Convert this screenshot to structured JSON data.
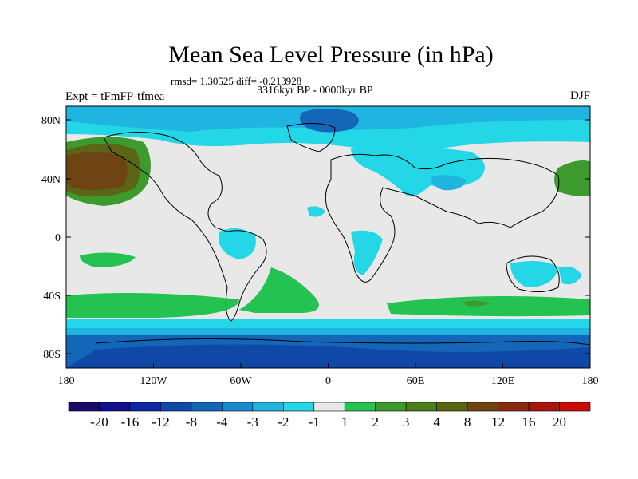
{
  "title": "Mean Sea Level Pressure (in hPa)",
  "stats": "rmsd= 1.30525 diff= -0.213928",
  "period": "3316kyr BP - 0000kyr BP",
  "experiment": "Expt = tFmFP-tfmea",
  "season": "DJF",
  "lat_ticks": [
    "80N",
    "40N",
    "0",
    "40S",
    "80S"
  ],
  "lon_ticks": [
    "180",
    "120W",
    "60W",
    "0",
    "60E",
    "120E",
    "180"
  ],
  "colorbar": {
    "colors": [
      "#1b0a6e",
      "#120f8c",
      "#0f27a3",
      "#1048a8",
      "#1466b8",
      "#188ad0",
      "#1fb5e0",
      "#24d7e6",
      "#e8e8e8",
      "#24c250",
      "#3d9a2c",
      "#4c7e1a",
      "#5a6613",
      "#6e4414",
      "#8a2a12",
      "#a8160e",
      "#cc0a08"
    ],
    "labels": [
      "-20",
      "-16",
      "-12",
      "-8",
      "-4",
      "-3",
      "-2",
      "-1",
      "1",
      "2",
      "3",
      "4",
      "8",
      "12",
      "16",
      "20"
    ]
  }
}
